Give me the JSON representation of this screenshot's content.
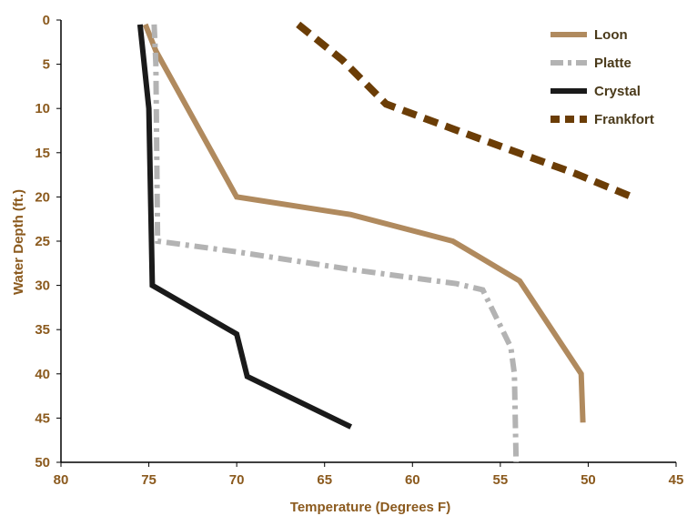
{
  "chart_data": {
    "type": "line",
    "xlabel": "Temperature (Degrees F)",
    "ylabel": "Water Depth (ft.)",
    "xlim": [
      80,
      45
    ],
    "ylim": [
      0,
      50
    ],
    "x_reversed": true,
    "y_inverted": true,
    "x_ticks": [
      "80",
      "75",
      "70",
      "65",
      "60",
      "55",
      "50",
      "45"
    ],
    "y_ticks": [
      "0",
      "5",
      "10",
      "15",
      "20",
      "25",
      "30",
      "35",
      "40",
      "45",
      "50"
    ],
    "grid": false,
    "legend_position": "top-right",
    "axis_color": "#8b5a1e",
    "series": [
      {
        "name": "Loon",
        "color": "#b08a5e",
        "style": "solid",
        "points": [
          [
            75.2,
            0.5
          ],
          [
            74.6,
            3.5
          ],
          [
            70,
            20
          ],
          [
            63.5,
            22
          ],
          [
            57.7,
            25
          ],
          [
            53.9,
            29.5
          ],
          [
            50.4,
            40
          ],
          [
            50.3,
            45.5
          ]
        ]
      },
      {
        "name": "Platte",
        "color": "#b3b3b3",
        "style": "dash-dot",
        "points": [
          [
            74.7,
            0.5
          ],
          [
            74.6,
            5
          ],
          [
            74.5,
            25
          ],
          [
            70,
            26.2
          ],
          [
            63.5,
            28.2
          ],
          [
            57.5,
            29.8
          ],
          [
            56,
            30.5
          ],
          [
            54.4,
            37
          ],
          [
            54.2,
            40
          ],
          [
            54.1,
            50
          ]
        ]
      },
      {
        "name": "Crystal",
        "color": "#1a1a1a",
        "style": "solid",
        "points": [
          [
            75.5,
            0.5
          ],
          [
            75,
            10
          ],
          [
            74.8,
            30
          ],
          [
            70,
            35.5
          ],
          [
            69.4,
            40.3
          ],
          [
            63.5,
            46
          ]
        ]
      },
      {
        "name": "Frankfort",
        "color": "#6b3d06",
        "style": "dashed",
        "points": [
          [
            66.5,
            0.5
          ],
          [
            64,
            4.5
          ],
          [
            61.5,
            9.5
          ],
          [
            57.7,
            12.3
          ],
          [
            54,
            15
          ],
          [
            50.8,
            17.3
          ],
          [
            47.5,
            20
          ]
        ]
      }
    ]
  }
}
